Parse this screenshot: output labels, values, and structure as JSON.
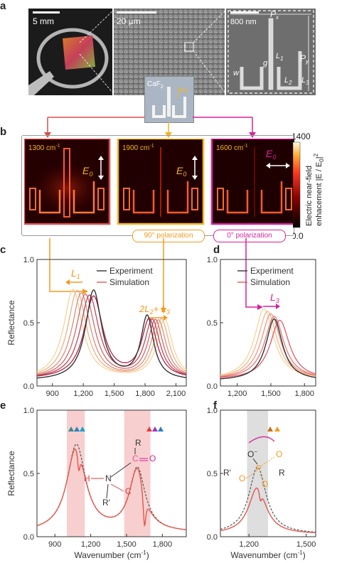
{
  "panel_letters": {
    "a": "a",
    "b": "b",
    "c": "c",
    "d": "d",
    "e": "e",
    "f": "f"
  },
  "panel_a": {
    "scale_1": "5 mm",
    "scale_2": "20 μm",
    "scale_3": "800 nm",
    "labels": {
      "px": "P",
      "px_sub": "x",
      "py": "P",
      "py_sub": "y",
      "w": "w",
      "g": "g",
      "l1": "L",
      "l1_sub": "1",
      "l2": "L",
      "l2_sub": "2",
      "l3": "L",
      "l3_sub": "3"
    },
    "inset_caf2": "CaF",
    "inset_caf2_sub": "2",
    "inset_au": "Au"
  },
  "panel_b": {
    "map1_label": "1300 cm",
    "map2_label": "1900 cm",
    "map3_label": "1600 cm",
    "unit_sup": "-1",
    "e0": "E",
    "e0_sub": "0",
    "colorbar_max": "1400",
    "colorbar_min": "0.0",
    "colorbar_label_1": "Electric near-field",
    "colorbar_label_2": "enhacement |E / E",
    "colorbar_label_sub": "0",
    "colorbar_label_end": "|",
    "colorbar_label_sup": "2",
    "pol_90": "90° polarization",
    "pol_0": "0° polarization"
  },
  "colors": {
    "experiment": "#333333",
    "simulation": "#e2574c",
    "orange": "#f39a1e",
    "magenta": "#d6229c",
    "red_box": "#d94f4f",
    "yellow_box": "#f5b41e"
  },
  "chart_data": [
    {
      "id": "c",
      "type": "line",
      "ylabel": "Reflectance",
      "xlabel": "",
      "xlim": [
        750,
        2200
      ],
      "ylim": [
        0.0,
        1.0
      ],
      "xticks": [
        "900",
        "1,200",
        "1,500",
        "1,800",
        "2,100"
      ],
      "xtick_values": [
        900,
        1200,
        1500,
        1800,
        2100
      ],
      "yticks": [
        "0.0",
        "0.5",
        "1.0"
      ],
      "legend": [
        "Experiment",
        "Simulation"
      ],
      "annotations": {
        "l1": "L",
        "l1_sub": "1",
        "l23_a": "2L",
        "l23_a_sub": "2",
        "l23_b": "+ L",
        "l23_b_sub": "3"
      },
      "series": [
        {
          "name": "Experiment",
          "peaks": [
            [
              1300,
              0.71
            ],
            [
              1820,
              0.53
            ]
          ],
          "min": [
            1560,
            0.09
          ]
        },
        {
          "peaks": [
            [
              1100,
              0.71
            ],
            [
              1990,
              0.52
            ]
          ]
        },
        {
          "peaks": [
            [
              1140,
              0.7
            ],
            [
              1960,
              0.52
            ]
          ]
        },
        {
          "peaks": [
            [
              1180,
              0.68
            ],
            [
              1930,
              0.51
            ]
          ]
        },
        {
          "peaks": [
            [
              1220,
              0.67
            ],
            [
              1900,
              0.51
            ]
          ]
        },
        {
          "peaks": [
            [
              1260,
              0.66
            ],
            [
              1870,
              0.51
            ]
          ]
        },
        {
          "name": "Simulation",
          "peaks": [
            [
              1300,
              0.65
            ],
            [
              1840,
              0.51
            ]
          ]
        }
      ]
    },
    {
      "id": "d",
      "type": "line",
      "ylabel": "",
      "xlabel": "",
      "xlim": [
        1050,
        1900
      ],
      "ylim": [
        0.0,
        1.0
      ],
      "xticks": [
        "1,200",
        "1,500",
        "1,800"
      ],
      "xtick_values": [
        1200,
        1500,
        1800
      ],
      "yticks": [
        "0.0",
        "0.5",
        "1.0"
      ],
      "legend": [
        "Experiment",
        "Simulation"
      ],
      "annotations": {
        "l3": "L",
        "l3_sub": "3"
      },
      "series": [
        {
          "name": "Experiment",
          "peak": [
            1530,
            0.53
          ]
        },
        {
          "peak": [
            1440,
            0.61
          ]
        },
        {
          "peak": [
            1470,
            0.59
          ]
        },
        {
          "peak": [
            1500,
            0.57
          ]
        },
        {
          "peak": [
            1530,
            0.55
          ]
        },
        {
          "name": "Simulation",
          "peak": [
            1580,
            0.52
          ]
        }
      ]
    },
    {
      "id": "e",
      "type": "line",
      "ylabel": "Reflectance",
      "xlabel": "Wavenumber (cm",
      "xlabel_sup": "-1",
      "xlabel_end": ")",
      "xlim": [
        750,
        2000
      ],
      "ylim": [
        0.0,
        1.0
      ],
      "xticks": [
        "900",
        "1,200",
        "1,500",
        "1,800"
      ],
      "xtick_values": [
        900,
        1200,
        1500,
        1800
      ],
      "yticks": [
        "0.0",
        "0.5",
        "1.0"
      ],
      "shaded_regions": [
        [
          1000,
          1150
        ],
        [
          1480,
          1700
        ]
      ],
      "molecule": {
        "r": "R",
        "c": "C",
        "o": "O",
        "h": "H",
        "n": "N",
        "r2": "R'"
      },
      "series": [
        {
          "name": "dashed",
          "peaks": [
            [
              1080,
              0.72
            ],
            [
              1590,
              0.55
            ]
          ]
        },
        {
          "name": "with_molecule",
          "peaks": [
            [
              1080,
              0.66
            ],
            [
              1590,
              0.55
            ]
          ],
          "dips": [
            [
              1100,
              0.47
            ],
            [
              1650,
              0.22
            ]
          ]
        }
      ]
    },
    {
      "id": "f",
      "type": "line",
      "ylabel": "",
      "xlabel": "Wavenumber (cm",
      "xlabel_sup": "-1",
      "xlabel_end": ")",
      "xlim": [
        1050,
        1550
      ],
      "ylim": [
        0.0,
        1.0
      ],
      "xticks": [
        "1,200",
        "1,500"
      ],
      "xtick_values": [
        1200,
        1500
      ],
      "yticks": [
        "0.0",
        "0.5",
        "1.0"
      ],
      "shaded_regions": [
        [
          1190,
          1300
        ]
      ],
      "molecule": {
        "o_minus": "O",
        "o_minus_sup": "−",
        "p": "P",
        "o1": "O",
        "o2": "O",
        "o3": "O",
        "r": "R",
        "r2": "R'"
      },
      "series": [
        {
          "name": "dashed",
          "peak": [
            1245,
            0.55
          ]
        },
        {
          "name": "with_molecule",
          "peak": [
            1245,
            0.4
          ],
          "dip": [
            1260,
            0.33
          ]
        }
      ]
    }
  ]
}
